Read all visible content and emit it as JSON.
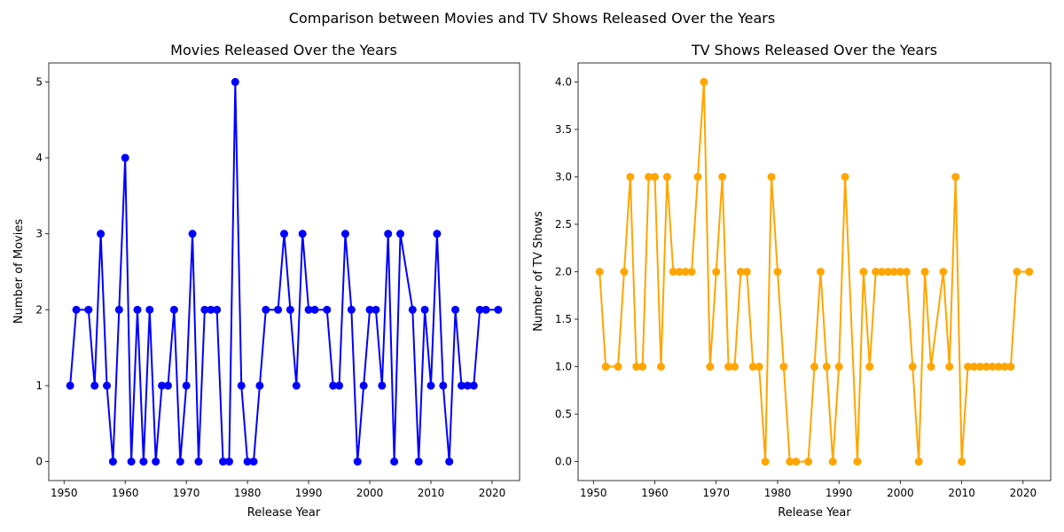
{
  "figure": {
    "suptitle": "Comparison between Movies and TV Shows Released Over the Years"
  },
  "chart_data": [
    {
      "type": "line",
      "title": "Movies Released Over the Years",
      "xlabel": "Release Year",
      "ylabel": "Number of Movies",
      "color": "#0000ff",
      "marker": "circle",
      "xlim": [
        1947.5,
        2024.5
      ],
      "ylim": [
        -0.25,
        5.25
      ],
      "xticks": [
        1950,
        1960,
        1970,
        1980,
        1990,
        2000,
        2010,
        2020
      ],
      "yticks": [
        0,
        1,
        2,
        3,
        4,
        5
      ],
      "yticklabels": [
        "0",
        "1",
        "2",
        "3",
        "4",
        "5"
      ],
      "grid": false,
      "x": [
        1951,
        1952,
        1954,
        1955,
        1956,
        1957,
        1958,
        1959,
        1960,
        1961,
        1962,
        1963,
        1964,
        1965,
        1966,
        1967,
        1968,
        1969,
        1970,
        1971,
        1972,
        1973,
        1974,
        1975,
        1976,
        1977,
        1978,
        1979,
        1980,
        1981,
        1982,
        1983,
        1985,
        1986,
        1987,
        1988,
        1989,
        1990,
        1991,
        1993,
        1994,
        1995,
        1996,
        1997,
        1998,
        1999,
        2000,
        2001,
        2002,
        2003,
        2004,
        2005,
        2007,
        2008,
        2009,
        2010,
        2011,
        2012,
        2013,
        2014,
        2015,
        2016,
        2017,
        2018,
        2019,
        2021
      ],
      "y": [
        1,
        2,
        2,
        1,
        3,
        1,
        0,
        2,
        4,
        0,
        2,
        0,
        2,
        0,
        1,
        1,
        2,
        0,
        1,
        3,
        0,
        2,
        2,
        2,
        0,
        0,
        5,
        1,
        0,
        0,
        1,
        2,
        2,
        3,
        2,
        1,
        3,
        2,
        2,
        2,
        1,
        1,
        3,
        2,
        0,
        1,
        2,
        2,
        1,
        3,
        0,
        3,
        2,
        0,
        2,
        1,
        3,
        1,
        0,
        2,
        1,
        1,
        1,
        2,
        2,
        2
      ]
    },
    {
      "type": "line",
      "title": "TV Shows Released Over the Years",
      "xlabel": "Release Year",
      "ylabel": "Number of TV Shows",
      "color": "#ffa500",
      "marker": "circle",
      "xlim": [
        1947.5,
        2024.5
      ],
      "ylim": [
        -0.2,
        4.2
      ],
      "xticks": [
        1950,
        1960,
        1970,
        1980,
        1990,
        2000,
        2010,
        2020
      ],
      "yticks": [
        0,
        0.5,
        1,
        1.5,
        2,
        2.5,
        3,
        3.5,
        4
      ],
      "yticklabels": [
        "0.0",
        "0.5",
        "1.0",
        "1.5",
        "2.0",
        "2.5",
        "3.0",
        "3.5",
        "4.0"
      ],
      "grid": false,
      "x": [
        1951,
        1952,
        1954,
        1955,
        1956,
        1957,
        1958,
        1959,
        1960,
        1961,
        1962,
        1963,
        1964,
        1965,
        1966,
        1967,
        1968,
        1969,
        1970,
        1971,
        1972,
        1973,
        1974,
        1975,
        1976,
        1977,
        1978,
        1979,
        1980,
        1981,
        1982,
        1983,
        1985,
        1986,
        1987,
        1988,
        1989,
        1990,
        1991,
        1993,
        1994,
        1995,
        1996,
        1997,
        1998,
        1999,
        2000,
        2001,
        2002,
        2003,
        2004,
        2005,
        2007,
        2008,
        2009,
        2010,
        2011,
        2012,
        2013,
        2014,
        2015,
        2016,
        2017,
        2018,
        2019,
        2021
      ],
      "y": [
        2,
        1,
        1,
        2,
        3,
        1,
        1,
        3,
        3,
        1,
        3,
        2,
        2,
        2,
        2,
        3,
        4,
        1,
        2,
        3,
        1,
        1,
        2,
        2,
        1,
        1,
        0,
        3,
        2,
        1,
        0,
        0,
        0,
        1,
        2,
        1,
        0,
        1,
        3,
        0,
        2,
        1,
        2,
        2,
        2,
        2,
        2,
        2,
        1,
        0,
        2,
        1,
        2,
        1,
        3,
        0,
        1,
        1,
        1,
        1,
        1,
        1,
        1,
        1,
        2,
        2
      ]
    }
  ]
}
